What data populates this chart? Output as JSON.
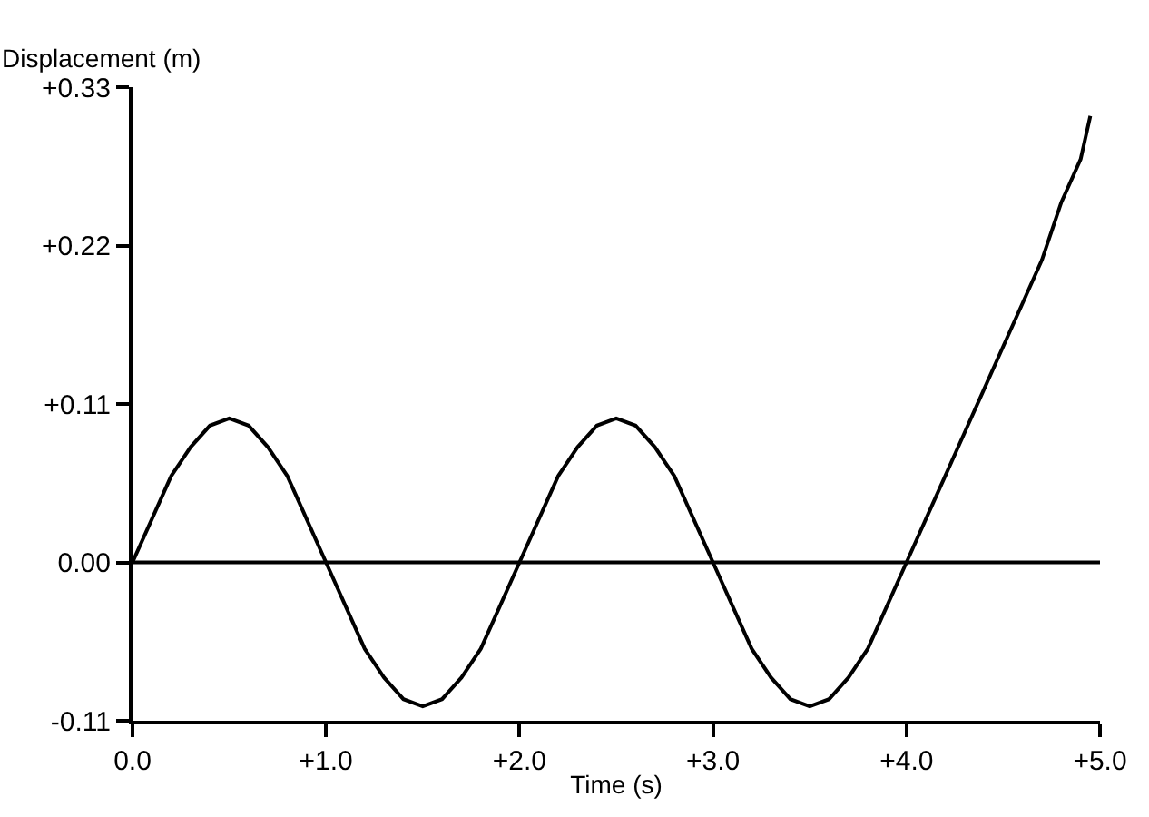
{
  "chart_data": {
    "type": "line",
    "xlabel": "Time (s)",
    "ylabel": "Displacement (m)",
    "x": [
      0,
      0.1,
      0.2,
      0.3,
      0.4,
      0.5,
      0.6,
      0.7,
      0.8,
      0.9,
      1.0,
      1.1,
      1.2,
      1.3,
      1.4,
      1.5,
      1.6,
      1.7,
      1.8,
      1.9,
      2.0,
      2.1,
      2.2,
      2.3,
      2.4,
      2.5,
      2.6,
      2.7,
      2.8,
      2.9,
      3.0,
      3.1,
      3.2,
      3.3,
      3.4,
      3.5,
      3.6,
      3.7,
      3.8,
      3.9,
      4.0,
      4.1,
      4.2,
      4.3,
      4.4,
      4.5,
      4.6,
      4.7,
      4.8,
      4.9,
      4.95
    ],
    "series": [
      {
        "color": "#000000",
        "values": [
          0.0,
          0.03,
          0.06,
          0.08,
          0.095,
          0.1,
          0.095,
          0.08,
          0.06,
          0.03,
          0.0,
          -0.03,
          -0.06,
          -0.08,
          -0.095,
          -0.1,
          -0.095,
          -0.08,
          -0.06,
          -0.03,
          0.0,
          0.03,
          0.06,
          0.08,
          0.095,
          0.1,
          0.095,
          0.08,
          0.06,
          0.03,
          0.0,
          -0.03,
          -0.06,
          -0.08,
          -0.095,
          -0.1,
          -0.095,
          -0.08,
          -0.06,
          -0.03,
          0.0,
          0.03,
          0.06,
          0.09,
          0.12,
          0.15,
          0.18,
          0.21,
          0.25,
          0.28,
          0.31
        ]
      }
    ],
    "xlim": [
      0,
      5
    ],
    "ylim": [
      -0.11,
      0.33
    ],
    "xticks": [
      {
        "value": 0,
        "label": "0.0"
      },
      {
        "value": 1,
        "label": "+1.0"
      },
      {
        "value": 2,
        "label": "+2.0"
      },
      {
        "value": 3,
        "label": "+3.0"
      },
      {
        "value": 4,
        "label": "+4.0"
      },
      {
        "value": 5,
        "label": "+5.0"
      }
    ],
    "yticks": [
      {
        "value": -0.11,
        "label": "-0.11"
      },
      {
        "value": 0,
        "label": "0.00"
      },
      {
        "value": 0.11,
        "label": "+0.11"
      },
      {
        "value": 0.22,
        "label": "+0.22"
      },
      {
        "value": 0.33,
        "label": "+0.33"
      }
    ],
    "ref_lines": [
      {
        "axis": "y",
        "value": 0,
        "color": "#000000"
      }
    ],
    "legend": false,
    "marker": "none",
    "line_style": "solid"
  }
}
